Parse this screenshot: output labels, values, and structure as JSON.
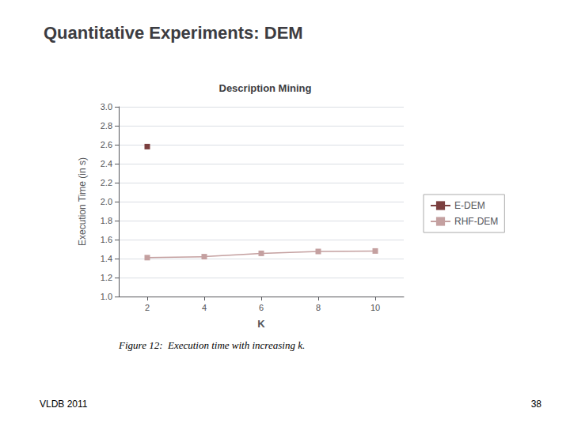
{
  "chart_data": {
    "type": "line",
    "title": "Quantitative Experiments: DEM",
    "subtitle": "Description Mining",
    "xlabel": "K",
    "ylabel": "Execution Time (in s)",
    "xlim": [
      1,
      11
    ],
    "ylim": [
      1,
      3
    ],
    "xticks": [
      2,
      4,
      6,
      8,
      10
    ],
    "yticks": [
      {
        "value": 1,
        "label": "1.0"
      },
      1.2,
      1.4,
      1.6,
      1.8,
      {
        "value": 2,
        "label": "2.0"
      },
      2.2,
      2.4,
      2.6,
      2.8,
      {
        "value": 3,
        "label": "3.0"
      }
    ],
    "grid": "y",
    "legend": "right",
    "series": [
      {
        "name": "E-DEM",
        "color": "#7B3F3F",
        "marker": "square",
        "x": [
          2
        ],
        "values": [
          2.58
        ]
      },
      {
        "name": "RHF-DEM",
        "color": "#C4A0A0",
        "marker": "square",
        "x": [
          2,
          4,
          6,
          8,
          10
        ],
        "values": [
          1.41,
          1.42,
          1.455,
          1.475,
          1.48
        ]
      }
    ],
    "annotations": [
      "VLDB 2011",
      "38",
      "Figure 12:  Execution time with increasing k."
    ]
  }
}
